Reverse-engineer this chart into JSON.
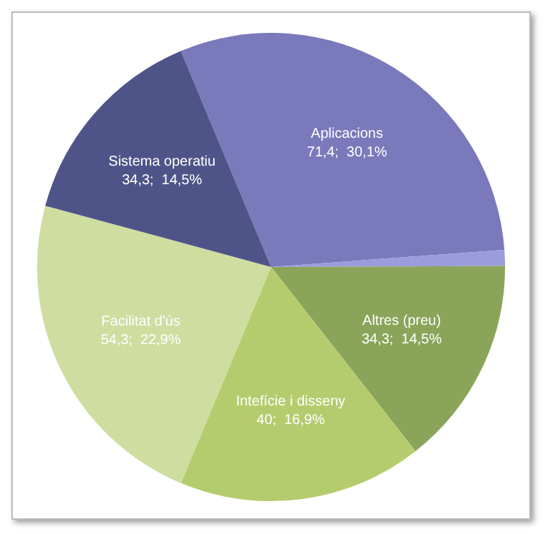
{
  "chart_data": {
    "type": "pie",
    "categories": [
      "Aplicacions",
      null,
      "Altres (preu)",
      "Intefície i disseny",
      "Facilitat d'ús",
      "Sistema operatiu"
    ],
    "values": [
      71.4,
      2.6,
      34.3,
      40,
      54.3,
      34.3
    ],
    "value_labels": [
      "71,4;  30,1%",
      null,
      "34,3;  14,5%",
      "40;  16,9%",
      "54,3;  22,9%",
      "34,3;  14,5%"
    ],
    "colors": [
      "#7979bb",
      "#9c9cdc",
      "#8aa55a",
      "#b5cc6e",
      "#cfdda0",
      "#4f5488"
    ],
    "legend": false
  }
}
